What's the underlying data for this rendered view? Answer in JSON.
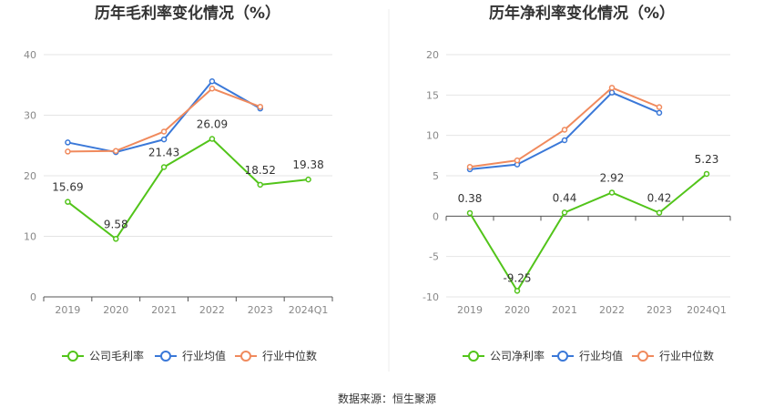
{
  "charts": [
    {
      "title": "历年毛利率变化情况（%）",
      "type": "line",
      "categories": [
        "2019",
        "2020",
        "2021",
        "2022",
        "2023",
        "2024Q1"
      ],
      "y_ticks": [
        "0",
        "10",
        "20",
        "30",
        "40"
      ],
      "ylim": [
        0,
        40
      ],
      "grid": true,
      "series": [
        {
          "name": "公司毛利率",
          "color": "#52c41a",
          "values": [
            15.69,
            9.58,
            21.43,
            26.09,
            18.52,
            19.38
          ],
          "labels": [
            "15.69",
            "9.58",
            "21.43",
            "26.09",
            "18.52",
            "19.38"
          ]
        },
        {
          "name": "行业均值",
          "color": "#3a78d8",
          "values": [
            25.5,
            23.9,
            26.0,
            35.6,
            31.1,
            null
          ],
          "labels": []
        },
        {
          "name": "行业中位数",
          "color": "#f08a5d",
          "values": [
            24.0,
            24.1,
            27.3,
            34.4,
            31.4,
            null
          ],
          "labels": []
        }
      ],
      "legend_position": "bottom"
    },
    {
      "title": "历年净利率变化情况（%）",
      "type": "line",
      "categories": [
        "2019",
        "2020",
        "2021",
        "2022",
        "2023",
        "2024Q1"
      ],
      "y_ticks": [
        "-10",
        "-5",
        "0",
        "5",
        "10",
        "15",
        "20"
      ],
      "ylim": [
        -10,
        20
      ],
      "grid": true,
      "series": [
        {
          "name": "公司净利率",
          "color": "#52c41a",
          "values": [
            0.38,
            -9.25,
            0.44,
            2.92,
            0.42,
            5.23
          ],
          "labels": [
            "0.38",
            "-9.25",
            "0.44",
            "2.92",
            "0.42",
            "5.23"
          ]
        },
        {
          "name": "行业均值",
          "color": "#3a78d8",
          "values": [
            5.8,
            6.4,
            9.4,
            15.3,
            12.8,
            null
          ],
          "labels": []
        },
        {
          "name": "行业中位数",
          "color": "#f08a5d",
          "values": [
            6.1,
            6.9,
            10.7,
            15.9,
            13.5,
            null
          ],
          "labels": []
        }
      ],
      "legend_position": "bottom"
    }
  ],
  "chart_data": [
    {
      "type": "line",
      "title": "历年毛利率变化情况（%）",
      "categories": [
        "2019",
        "2020",
        "2021",
        "2022",
        "2023",
        "2024Q1"
      ],
      "ylim": [
        0,
        40
      ],
      "series": [
        {
          "name": "公司毛利率",
          "values": [
            15.69,
            9.58,
            21.43,
            26.09,
            18.52,
            19.38
          ]
        },
        {
          "name": "行业均值",
          "values": [
            25.5,
            23.9,
            26.0,
            35.6,
            31.1,
            null
          ]
        },
        {
          "name": "行业中位数",
          "values": [
            24.0,
            24.1,
            27.3,
            34.4,
            31.4,
            null
          ]
        }
      ],
      "grid": true,
      "legend": "bottom"
    },
    {
      "type": "line",
      "title": "历年净利率变化情况（%）",
      "categories": [
        "2019",
        "2020",
        "2021",
        "2022",
        "2023",
        "2024Q1"
      ],
      "ylim": [
        -10,
        20
      ],
      "series": [
        {
          "name": "公司净利率",
          "values": [
            0.38,
            -9.25,
            0.44,
            2.92,
            0.42,
            5.23
          ]
        },
        {
          "name": "行业均值",
          "values": [
            5.8,
            6.4,
            9.4,
            15.3,
            12.8,
            null
          ]
        },
        {
          "name": "行业中位数",
          "values": [
            6.1,
            6.9,
            10.7,
            15.9,
            13.5,
            null
          ]
        }
      ],
      "grid": true,
      "legend": "bottom"
    }
  ],
  "footer": {
    "source": "数据来源：恒生聚源"
  }
}
